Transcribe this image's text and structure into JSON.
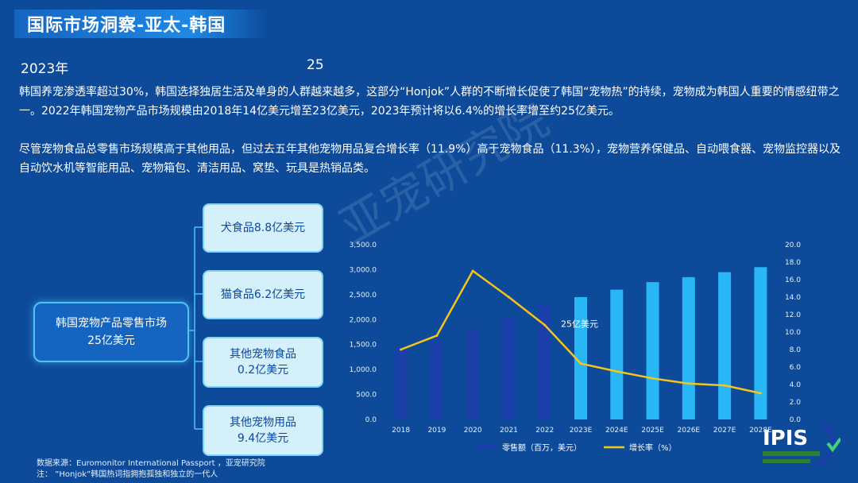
{
  "header": {
    "title": "国际市场洞察-亚太-韩国",
    "year": "2023年",
    "number": "25"
  },
  "paragraphs": [
    "韩国养宠渗透率超过30%，韩国选择独居生活及单身的人群越来越多，这部分“Honjok”人群的不断增长促使了韩国“宠物热”的持续，宠物成为韩国人重要的情感纽带之一。2022年韩国宠物产品市场规模由2018年14亿美元增至23亿美元，2023年预计将以6.4%的增长率增至约25亿美元。",
    "尽管宠物食品总零售市场规模高于其他用品，但过去五年其他宠物用品复合增长率（11.9%）高于宠物食品（11.3%），宠物营养保健品、自动喂食器、宠物监控器以及自动饮水机等智能用品、宠物箱包、清洁用品、窝垫、玩具是热销品类。"
  ],
  "watermark": "亚宠研究院",
  "tree": {
    "root_line1": "韩国宠物产品零售市场",
    "root_line2": "25亿美元",
    "leaves": [
      {
        "line1": "犬食品8.8亿美元",
        "line2": ""
      },
      {
        "line1": "猫食品6.2亿美元",
        "line2": ""
      },
      {
        "line1": "其他宠物食品",
        "line2": "0.2亿美元"
      },
      {
        "line1": "其他宠物用品",
        "line2": "9.4亿美元"
      }
    ]
  },
  "chart_data": {
    "type": "bar",
    "categories": [
      "2018",
      "2019",
      "2020",
      "2021",
      "2022",
      "2023E",
      "2024E",
      "2025E",
      "2026E",
      "2027E",
      "2028E"
    ],
    "series": [
      {
        "name": "零售额（百万，美元）",
        "type": "bar",
        "axis": "left",
        "values": [
          1400,
          1550,
          1800,
          2050,
          2300,
          2450,
          2600,
          2750,
          2850,
          2950,
          3050
        ]
      },
      {
        "name": "增长率（%）",
        "type": "line",
        "axis": "right",
        "values": [
          8.0,
          9.6,
          17.0,
          14.0,
          10.8,
          6.4,
          5.5,
          4.7,
          4.1,
          3.9,
          3.0
        ]
      }
    ],
    "ylim_left": [
      0,
      3500
    ],
    "yticks_left": [
      "0.0",
      "500.0",
      "1,000.0",
      "1,500.0",
      "2,000.0",
      "2,500.0",
      "3,000.0",
      "3,500.0"
    ],
    "ylim_right": [
      0,
      20
    ],
    "yticks_right": [
      "0.0",
      "2.0",
      "4.0",
      "6.0",
      "8.0",
      "10.0",
      "12.0",
      "14.0",
      "16.0",
      "18.0",
      "20.0"
    ],
    "annotation": "25亿美元",
    "colors": {
      "historic_bar": "#1a3fa8",
      "forecast_bar": "#29b6f6",
      "line": "#f5c518"
    },
    "legend_placement": "bottom"
  },
  "footer": {
    "source": "数据来源：Euromonitor International Passport ，亚宠研究院",
    "note": "注：  ”Honjok”韩国热词指拥抱孤独和独立的一代人"
  },
  "logo": {
    "text": "IPIS",
    "icon": "check-shield-icon"
  }
}
